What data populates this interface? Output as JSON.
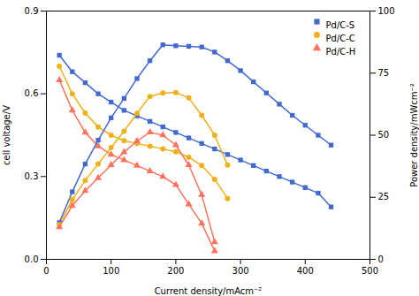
{
  "chart_data": {
    "type": "line",
    "xlabel": "Current density/mAcm⁻²",
    "ylabel": "cell voltage/V",
    "y2label": "Power density/mWcm⁻²",
    "xlim": [
      0,
      500
    ],
    "ylim": [
      0.0,
      0.9
    ],
    "y2lim": [
      0,
      100
    ],
    "xticks": [
      0,
      100,
      200,
      300,
      400,
      500
    ],
    "yticks": [
      {
        "value": 0.0,
        "label": "0.0"
      },
      0.3,
      0.6,
      0.9
    ],
    "y2ticks": [
      0,
      25,
      50,
      75,
      100
    ],
    "legend": "upper right",
    "x": [
      20,
      40,
      60,
      80,
      100,
      120,
      140,
      160,
      180,
      200,
      220,
      240,
      260,
      280,
      300,
      320,
      340,
      360,
      380,
      400,
      420,
      440
    ],
    "series": [
      {
        "name": "Pd/C-S",
        "marker": "square",
        "values": [
          0.74,
          0.68,
          0.64,
          0.6,
          0.57,
          0.54,
          0.52,
          0.5,
          0.48,
          0.46,
          0.44,
          0.42,
          0.4,
          0.38,
          0.36,
          0.34,
          0.32,
          0.3,
          0.28,
          0.26,
          0.24,
          0.19
        ]
      },
      {
        "name": "Pd/C-S",
        "marker": "square",
        "axis": "y2",
        "values": [
          14.8,
          27.2,
          38.4,
          48.0,
          57.0,
          64.8,
          72.8,
          80.0,
          86.4,
          86.0,
          85.8,
          85.5,
          83.5,
          80.0,
          76.0,
          71.5,
          67.0,
          62.5,
          58.0,
          54.0,
          50.0,
          46.0
        ]
      },
      {
        "name": "Pd/C-C",
        "marker": "circle",
        "values": [
          0.7,
          0.6,
          0.53,
          0.48,
          0.45,
          0.43,
          0.42,
          0.41,
          0.4,
          0.39,
          0.37,
          0.34,
          0.29,
          0.22,
          null,
          null,
          null,
          null,
          null,
          null,
          null,
          null
        ]
      },
      {
        "name": "Pd/C-C",
        "marker": "circle",
        "axis": "y2",
        "values": [
          14.0,
          24.0,
          31.8,
          38.4,
          45.0,
          51.6,
          58.8,
          65.6,
          67.0,
          67.2,
          65.0,
          58.0,
          50.0,
          38.0,
          null,
          null,
          null,
          null,
          null,
          null,
          null,
          null
        ]
      },
      {
        "name": "Pd/C-H",
        "marker": "triangle",
        "values": [
          0.65,
          0.54,
          0.46,
          0.41,
          0.38,
          0.36,
          0.34,
          0.32,
          0.3,
          0.27,
          0.2,
          0.13,
          0.03,
          null,
          null,
          null,
          null,
          null,
          null,
          null,
          null,
          null
        ]
      },
      {
        "name": "Pd/C-H",
        "marker": "triangle",
        "axis": "y2",
        "values": [
          13.0,
          21.6,
          27.6,
          32.8,
          38.0,
          43.2,
          47.6,
          51.2,
          50.0,
          46.0,
          38.0,
          26.0,
          7.0,
          null,
          null,
          null,
          null,
          null,
          null,
          null,
          null,
          null
        ]
      }
    ]
  }
}
